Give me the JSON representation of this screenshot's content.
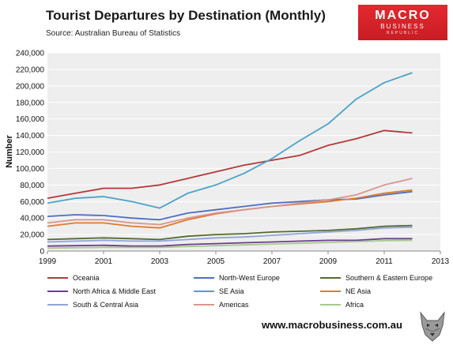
{
  "header": {
    "title": "Tourist Departures by Destination (Monthly)",
    "subtitle": "Source: Australian Bureau of Statistics"
  },
  "logo": {
    "line1": "MACRO",
    "line2": "BUSINESS",
    "line3": "REPUBLIC"
  },
  "footer": {
    "url": "www.macrobusiness.com.au"
  },
  "chart_data": {
    "type": "line",
    "title": "Tourist Departures by Destination (Monthly)",
    "xlabel": "",
    "ylabel": "Number",
    "xlim": [
      1999,
      2013
    ],
    "ylim": [
      0,
      240000
    ],
    "x_ticks": [
      "1999",
      "2001",
      "2003",
      "2005",
      "2007",
      "2009",
      "2011",
      "2013"
    ],
    "y_ticks": [
      "0",
      "20,000",
      "40,000",
      "60,000",
      "80,000",
      "100,000",
      "120,000",
      "140,000",
      "160,000",
      "180,000",
      "200,000",
      "220,000",
      "240,000"
    ],
    "grid": true,
    "legend_position": "bottom",
    "x": [
      1999,
      2000,
      2001,
      2002,
      2003,
      2004,
      2005,
      2006,
      2007,
      2008,
      2009,
      2010,
      2011,
      2012
    ],
    "series": [
      {
        "name": "Oceania",
        "color": "#b5393a",
        "values": [
          64000,
          70000,
          76000,
          76000,
          80000,
          88000,
          96000,
          104000,
          110000,
          116000,
          128000,
          136000,
          146000,
          143000
        ]
      },
      {
        "name": "North-West Europe",
        "color": "#4f6fbf",
        "values": [
          42000,
          44000,
          43000,
          40000,
          38000,
          46000,
          50000,
          54000,
          58000,
          60000,
          62000,
          63000,
          68000,
          72000
        ]
      },
      {
        "name": "Southern & Eastern Europe",
        "color": "#556b2f",
        "values": [
          14000,
          15000,
          16000,
          15000,
          14000,
          18000,
          20000,
          21000,
          23000,
          24000,
          25000,
          27000,
          30000,
          31000
        ]
      },
      {
        "name": "North Africa & Middle East",
        "color": "#6b3f8f",
        "values": [
          6000,
          6500,
          7000,
          6000,
          6000,
          8000,
          9000,
          10000,
          11000,
          12000,
          13000,
          13000,
          15000,
          15000
        ]
      },
      {
        "name": "SE Asia",
        "color": "#4aa3c8",
        "values": [
          58000,
          64000,
          66000,
          60000,
          52000,
          70000,
          80000,
          94000,
          112000,
          134000,
          154000,
          184000,
          204000,
          216000
        ]
      },
      {
        "name": "NE Asia",
        "color": "#e07b2a",
        "values": [
          30000,
          34000,
          34000,
          30000,
          28000,
          38000,
          45000,
          50000,
          54000,
          57000,
          60000,
          64000,
          70000,
          74000
        ]
      },
      {
        "name": "South & Central Asia",
        "color": "#8fa4d8",
        "values": [
          11000,
          12000,
          13000,
          12000,
          12000,
          14000,
          16000,
          17000,
          19000,
          21000,
          23000,
          25000,
          28000,
          29000
        ]
      },
      {
        "name": "Americas",
        "color": "#d99590",
        "values": [
          34000,
          38000,
          38000,
          34000,
          32000,
          40000,
          46000,
          50000,
          54000,
          58000,
          62000,
          68000,
          80000,
          88000
        ]
      },
      {
        "name": "Africa",
        "color": "#a9c98a",
        "values": [
          3500,
          4000,
          4500,
          4500,
          4500,
          5500,
          6500,
          7500,
          8500,
          9500,
          10500,
          11500,
          12500,
          13000
        ]
      }
    ]
  }
}
